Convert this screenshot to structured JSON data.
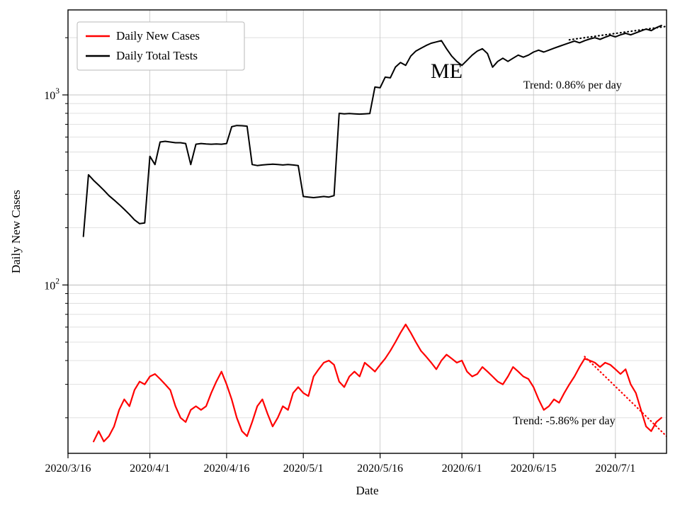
{
  "figure": {
    "xlabel": "Date",
    "ylabel": "Daily New Cases"
  },
  "legend": {
    "entries": [
      {
        "label": "Daily New Cases",
        "color": "#ff0000"
      },
      {
        "label": "Daily Total Tests",
        "color": "#000000"
      }
    ]
  },
  "annotations": [
    {
      "name": "state-label",
      "text": "ME",
      "x_date": "2020/5/29",
      "y_value": 1230,
      "font_size": 30,
      "color": "#000000",
      "anchor": "middle"
    },
    {
      "name": "tests-trend-label",
      "text": "Trend: 0.86% per day",
      "x_date": "2020/6/13",
      "y_value": 1080,
      "font_size": 16,
      "color": "#000000",
      "anchor": "start"
    },
    {
      "name": "cases-trend-label",
      "text": "Trend: -5.86% per day",
      "x_date": "2020/6/11",
      "y_value": 18.5,
      "font_size": 16,
      "color": "#000000",
      "anchor": "start"
    }
  ],
  "chart_data": {
    "type": "line",
    "y_scale": "log",
    "x_range": [
      "2020/3/16",
      "2020/7/11"
    ],
    "ylim": [
      13,
      2800
    ],
    "x_ticks": [
      "2020/3/16",
      "2020/4/1",
      "2020/4/16",
      "2020/5/1",
      "2020/5/16",
      "2020/6/1",
      "2020/6/15",
      "2020/7/1"
    ],
    "y_ticks": [
      {
        "value": 100,
        "base": "10",
        "exponent": "2"
      },
      {
        "value": 1000,
        "base": "10",
        "exponent": "3"
      }
    ],
    "series": [
      {
        "name": "Daily Total Tests",
        "color": "#000000",
        "width": 2,
        "start_date": "2020/3/19",
        "values": [
          180,
          380,
          355,
          335,
          315,
          295,
          280,
          265,
          250,
          235,
          220,
          210,
          212,
          475,
          430,
          565,
          570,
          565,
          560,
          560,
          555,
          430,
          550,
          555,
          552,
          550,
          552,
          550,
          555,
          680,
          690,
          688,
          685,
          430,
          425,
          428,
          430,
          432,
          430,
          428,
          430,
          428,
          425,
          292,
          290,
          288,
          290,
          292,
          290,
          295,
          800,
          795,
          798,
          795,
          792,
          795,
          798,
          1100,
          1090,
          1240,
          1230,
          1400,
          1480,
          1430,
          1600,
          1700,
          1760,
          1820,
          1870,
          1900,
          1930,
          1750,
          1600,
          1500,
          1430,
          1520,
          1620,
          1700,
          1750,
          1650,
          1400,
          1500,
          1560,
          1500,
          1560,
          1620,
          1580,
          1620,
          1680,
          1720,
          1680,
          1720,
          1760,
          1800,
          1840,
          1880,
          1920,
          1880,
          1930,
          1970,
          2000,
          1960,
          2010,
          2060,
          2020,
          2070,
          2110,
          2070,
          2120,
          2170,
          2220,
          2180,
          2260,
          2320
        ]
      },
      {
        "name": "Daily New Cases",
        "color": "#ff0000",
        "width": 2.2,
        "start_date": "2020/3/21",
        "values": [
          15,
          17,
          15,
          16,
          18,
          22,
          25,
          23,
          28,
          31,
          30,
          33,
          34,
          32,
          30,
          28,
          23,
          20,
          19,
          22,
          23,
          22,
          23,
          27,
          31,
          35,
          30,
          25,
          20,
          17,
          16,
          19,
          23,
          25,
          21,
          18,
          20,
          23,
          22,
          27,
          29,
          27,
          26,
          33,
          36,
          39,
          40,
          38,
          31,
          29,
          33,
          35,
          33,
          39,
          37,
          35,
          38,
          41,
          45,
          50,
          56,
          62,
          56,
          50,
          45,
          42,
          39,
          36,
          40,
          43,
          41,
          39,
          40,
          35,
          33,
          34,
          37,
          35,
          33,
          31,
          30,
          33,
          37,
          35,
          33,
          32,
          29,
          25,
          22,
          23,
          25,
          24,
          27,
          30,
          33,
          37,
          41,
          40,
          39,
          37,
          39,
          38,
          36,
          34,
          36,
          30,
          27,
          22,
          18,
          17,
          19,
          20
        ]
      }
    ],
    "trends": [
      {
        "name": "tests-trend",
        "series": "Daily Total Tests",
        "color": "#000000",
        "rate_percent_per_day": 0.86,
        "start_date": "2020/6/22",
        "start_value": 1950,
        "end_date": "2020/7/11",
        "label": "Trend: 0.86% per day"
      },
      {
        "name": "cases-trend",
        "series": "Daily New Cases",
        "color": "#ff0000",
        "rate_percent_per_day": -5.86,
        "start_date": "2020/6/25",
        "start_value": 42,
        "end_date": "2020/7/11",
        "label": "Trend: -5.86% per day"
      }
    ]
  }
}
